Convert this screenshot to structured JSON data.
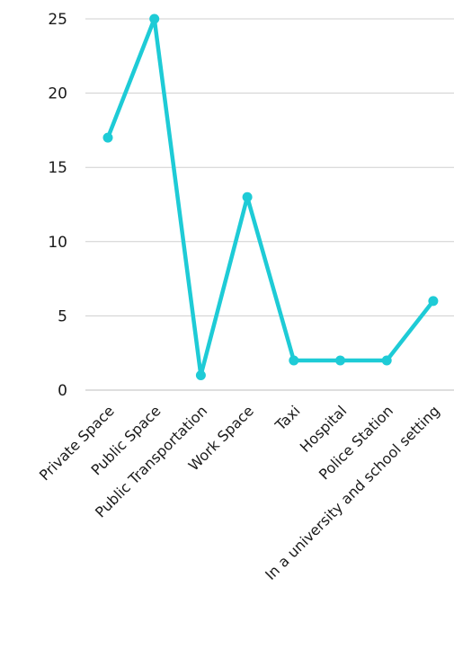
{
  "chart_data": {
    "type": "line",
    "title": "",
    "xlabel": "",
    "ylabel": "",
    "categories": [
      "Private Space",
      "Public Space",
      "Public Transportation",
      "Work Space",
      "Taxi",
      "Hospital",
      "Police Station",
      "In a university and school setting"
    ],
    "series": [
      {
        "values": [
          17,
          25,
          1,
          13,
          2,
          2,
          2,
          6
        ],
        "color": "#1ecbd6"
      }
    ],
    "ylim": [
      0,
      25
    ],
    "yticks": [
      "0",
      "5",
      "10",
      "15",
      "20",
      "25"
    ],
    "grid": true,
    "legend": "none"
  }
}
